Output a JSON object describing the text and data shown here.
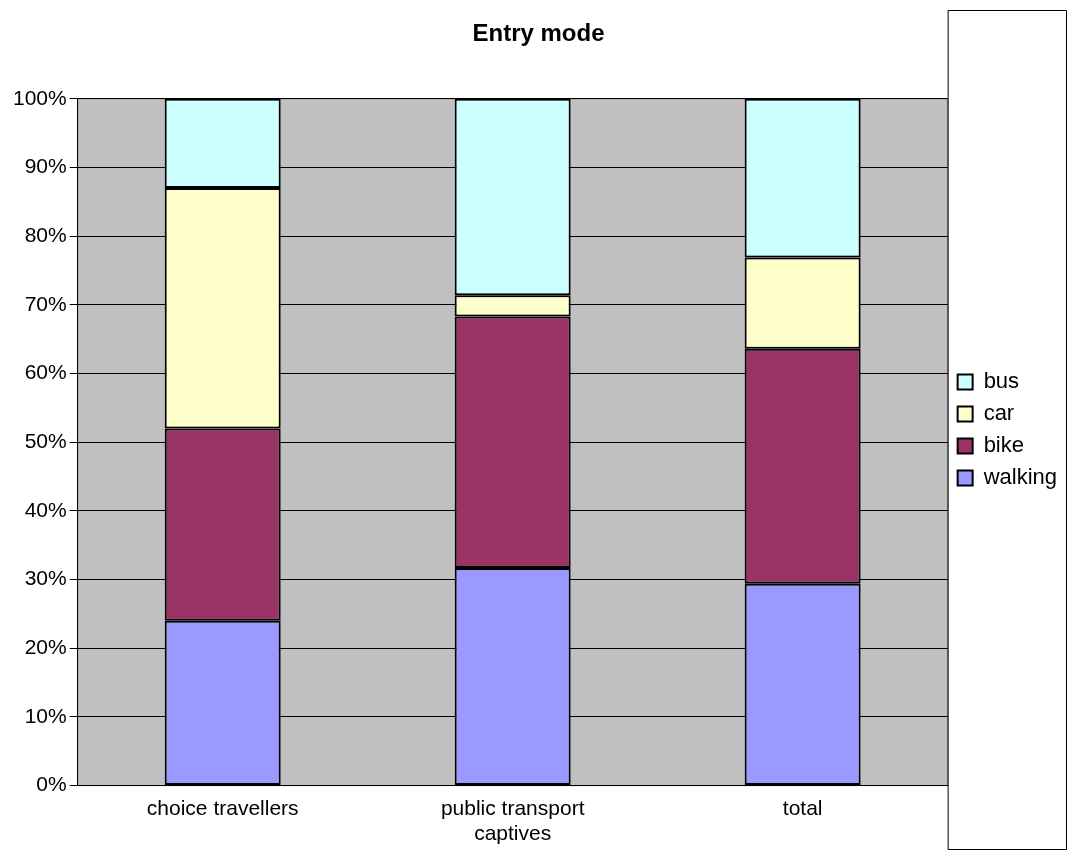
{
  "chart_data": {
    "type": "bar",
    "title": "Entry mode",
    "stacked": true,
    "categories": [
      "choice travellers",
      "public transport captives",
      "total"
    ],
    "series": [
      {
        "name": "walking",
        "color": "#9999ff",
        "values": [
          24,
          31.7,
          29.4
        ]
      },
      {
        "name": "bike",
        "color": "#993366",
        "values": [
          28,
          36.6,
          34.2
        ]
      },
      {
        "name": "car",
        "color": "#ffffcc",
        "values": [
          35,
          3.1,
          13.3
        ]
      },
      {
        "name": "bus",
        "color": "#ccffff",
        "values": [
          13,
          28.6,
          23.1
        ]
      }
    ],
    "ylim": [
      0,
      100
    ],
    "yticks": [
      {
        "value": 0,
        "label": "0%"
      },
      {
        "value": 10,
        "label": "10%"
      },
      {
        "value": 20,
        "label": "20%"
      },
      {
        "value": 30,
        "label": "30%"
      },
      {
        "value": 40,
        "label": "40%"
      },
      {
        "value": 50,
        "label": "50%"
      },
      {
        "value": 60,
        "label": "60%"
      },
      {
        "value": 70,
        "label": "70%"
      },
      {
        "value": 80,
        "label": "80%"
      },
      {
        "value": 90,
        "label": "90%"
      },
      {
        "value": 100,
        "label": "100%"
      }
    ],
    "grid": "y",
    "legend": "right"
  }
}
